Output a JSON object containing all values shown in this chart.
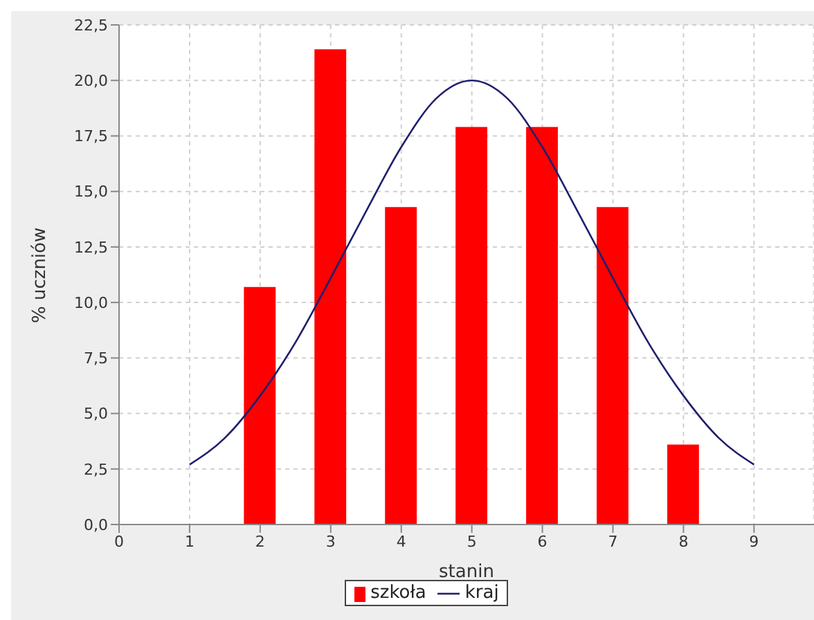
{
  "chart_data": {
    "type": "bar",
    "xlabel": "stanin",
    "ylabel": "% uczniów",
    "series": [
      {
        "name": "szkoła",
        "color": "#ff0000",
        "x": [
          2,
          3,
          4,
          5,
          6,
          7,
          8
        ],
        "values": [
          10.7,
          21.4,
          14.3,
          17.9,
          17.9,
          14.3,
          3.6
        ]
      },
      {
        "name": "kraj",
        "type": "line",
        "color": "#1f1f6e",
        "x": [
          1,
          1.5,
          2,
          2.5,
          3,
          3.5,
          4,
          4.5,
          5,
          5.5,
          6,
          6.5,
          7,
          7.5,
          8,
          8.5,
          9
        ],
        "values": [
          2.7,
          3.9,
          5.8,
          8.2,
          11.1,
          14.1,
          17.0,
          19.2,
          20.0,
          19.2,
          17.0,
          14.1,
          11.1,
          8.2,
          5.8,
          3.9,
          2.7
        ]
      }
    ],
    "xlim": [
      0,
      9.85
    ],
    "xticks": [
      0,
      1,
      2,
      3,
      4,
      5,
      6,
      7,
      8,
      9
    ],
    "ylim": [
      0,
      22.5
    ],
    "yticks": [
      {
        "value": 0,
        "label": "0,0"
      },
      {
        "value": 2.5,
        "label": "2,5"
      },
      {
        "value": 5,
        "label": "5,0"
      },
      {
        "value": 7.5,
        "label": "7,5"
      },
      {
        "value": 10,
        "label": "10,0"
      },
      {
        "value": 12.5,
        "label": "12,5"
      },
      {
        "value": 15,
        "label": "15,0"
      },
      {
        "value": 17.5,
        "label": "17,5"
      },
      {
        "value": 20,
        "label": "20,0"
      },
      {
        "value": 22.5,
        "label": "22,5"
      }
    ],
    "grid": true,
    "legend": "bottom",
    "marker": "none",
    "line_style": "solid"
  }
}
